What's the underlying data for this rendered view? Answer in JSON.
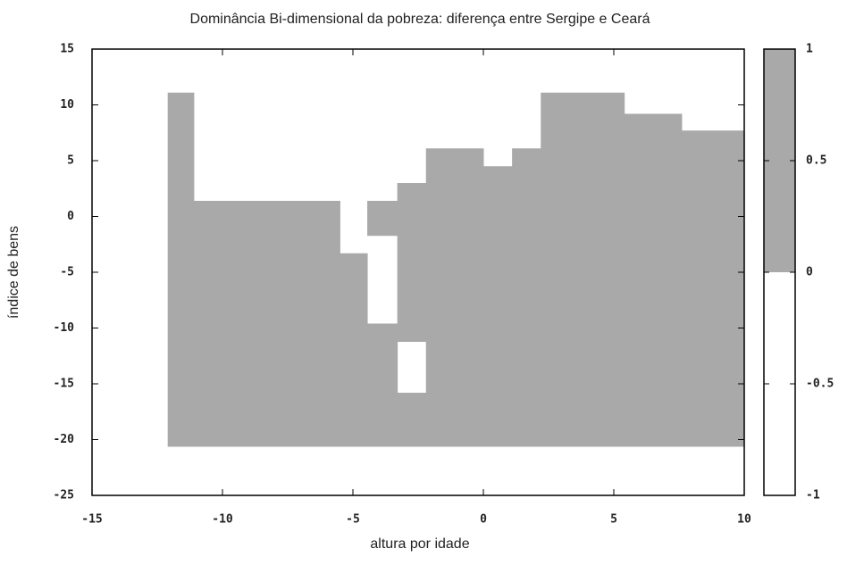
{
  "chart_data": {
    "type": "heatmap",
    "title": "Dominância Bi-dimensional da pobreza: diferença entre Sergipe e Ceará",
    "xlabel": "altura por idade",
    "ylabel": "índice de bens",
    "xlim": [
      -15,
      10
    ],
    "xticks": [
      -15,
      -10,
      -5,
      0,
      5,
      10
    ],
    "ylim": [
      -25,
      15
    ],
    "yticks": [
      -25,
      -20,
      -15,
      -10,
      -5,
      0,
      5,
      10,
      15
    ],
    "cells": [
      {
        "x": [
          -12.1,
          -11.1
        ],
        "y": [
          -20.6,
          11.1
        ],
        "value": 1
      },
      {
        "x": [
          -11.1,
          -5.5
        ],
        "y": [
          -20.6,
          1.4
        ],
        "value": 1
      },
      {
        "x": [
          -5.5,
          -4.45
        ],
        "y": [
          -20.6,
          -3.3
        ],
        "value": 1
      },
      {
        "x": [
          -4.45,
          -3.3
        ],
        "y": [
          -20.6,
          -9.6
        ],
        "value": 1
      },
      {
        "x": [
          -4.45,
          -3.3
        ],
        "y": [
          -1.7,
          1.4
        ],
        "value": 1
      },
      {
        "x": [
          -3.3,
          -2.2
        ],
        "y": [
          -20.6,
          -15.8
        ],
        "value": 1
      },
      {
        "x": [
          -3.3,
          -2.2
        ],
        "y": [
          -11.2,
          3.0
        ],
        "value": 1
      },
      {
        "x": [
          -2.2,
          0
        ],
        "y": [
          -20.6,
          6.1
        ],
        "value": 1
      },
      {
        "x": [
          0,
          1.1
        ],
        "y": [
          -20.6,
          4.5
        ],
        "value": 1
      },
      {
        "x": [
          1.1,
          2.2
        ],
        "y": [
          -20.6,
          6.1
        ],
        "value": 1
      },
      {
        "x": [
          2.2,
          5.4
        ],
        "y": [
          -20.6,
          11.1
        ],
        "value": 1
      },
      {
        "x": [
          5.4,
          7.6
        ],
        "y": [
          -20.6,
          9.2
        ],
        "value": 1
      },
      {
        "x": [
          7.6,
          10
        ],
        "y": [
          -20.6,
          7.7
        ],
        "value": 1
      }
    ],
    "colorbar": {
      "lim": [
        -1,
        1
      ],
      "ticks": [
        -1,
        -0.5,
        0,
        0.5,
        1
      ],
      "bands": [
        {
          "from": -1,
          "to": 0,
          "color": "#ffffff"
        },
        {
          "from": 0,
          "to": 1,
          "color": "#a9a9a9"
        }
      ]
    }
  }
}
